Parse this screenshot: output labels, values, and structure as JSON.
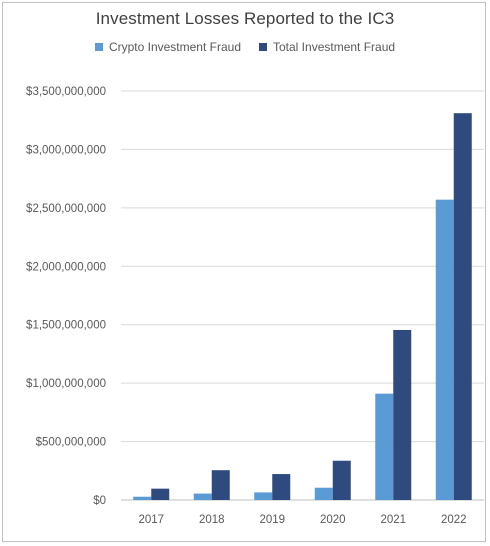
{
  "chart_data": {
    "type": "bar",
    "title": "Investment Losses Reported to the IC3",
    "xlabel": "",
    "ylabel": "",
    "categories": [
      "2017",
      "2018",
      "2019",
      "2020",
      "2021",
      "2022"
    ],
    "series": [
      {
        "name": "Crypto Investment Fraud",
        "color": "#5b9bd5",
        "values": [
          28000000,
          55000000,
          65000000,
          105000000,
          910000000,
          2570000000
        ]
      },
      {
        "name": "Total Investment Fraud",
        "color": "#2e4a7f",
        "values": [
          97000000,
          255000000,
          222000000,
          336000000,
          1455000000,
          3310000000
        ]
      }
    ],
    "ylim": [
      0,
      3500000000
    ],
    "yticks": [
      0,
      500000000,
      1000000000,
      1500000000,
      2000000000,
      2500000000,
      3000000000,
      3500000000
    ],
    "ytick_labels": [
      "$0",
      "$500,000,000",
      "$1,000,000,000",
      "$1,500,000,000",
      "$2,000,000,000",
      "$2,500,000,000",
      "$3,000,000,000",
      "$3,500,000,000"
    ],
    "grid": true,
    "legend_position": "top"
  }
}
